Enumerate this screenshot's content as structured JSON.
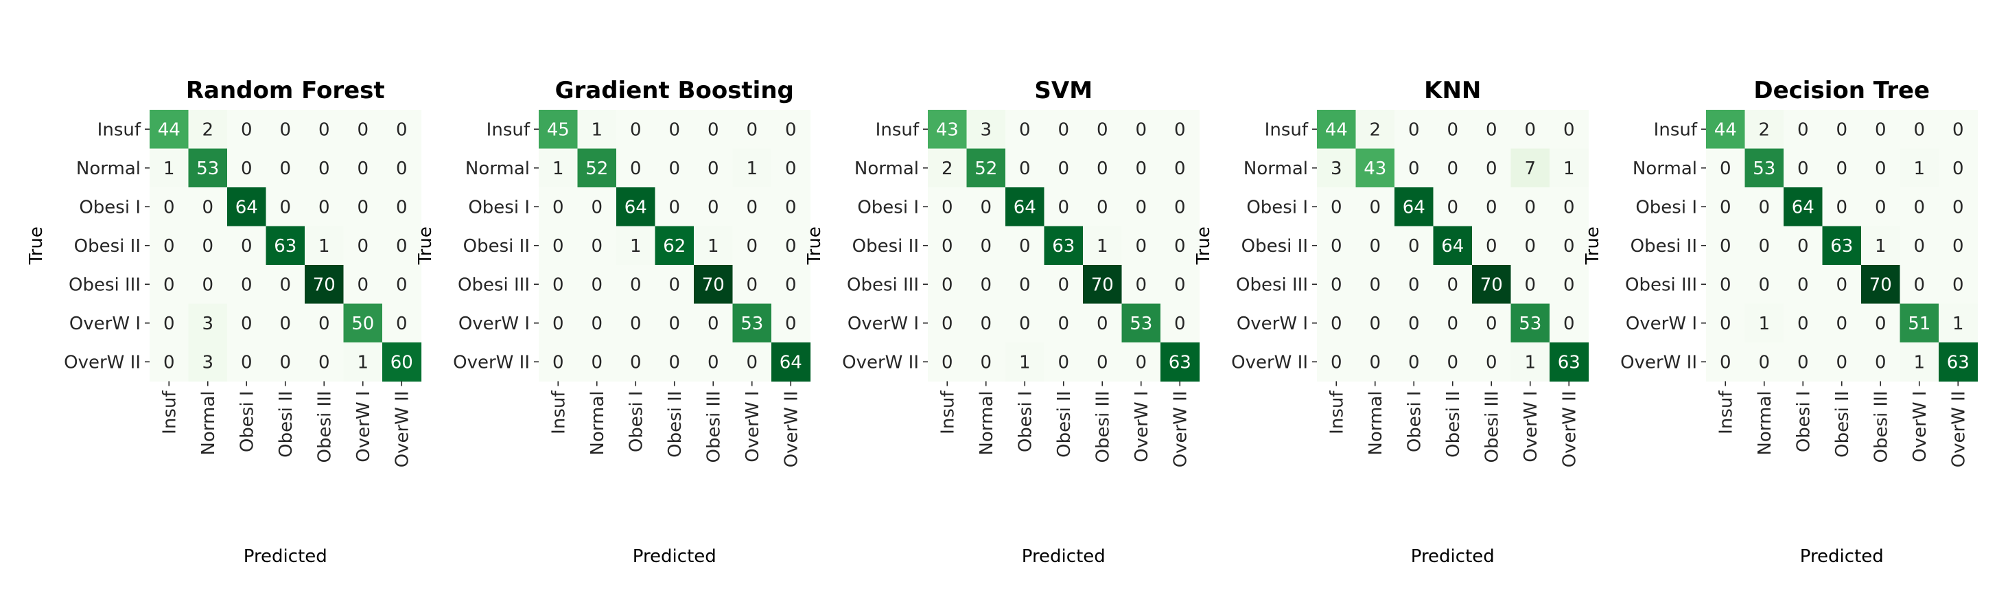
{
  "chart_data": [
    {
      "type": "heatmap",
      "title": "Random Forest",
      "xlabel": "Predicted",
      "ylabel": "True",
      "categories": [
        "Insuf",
        "Normal",
        "Obesi I",
        "Obesi II",
        "Obesi III",
        "OverW I",
        "OverW II"
      ],
      "matrix": [
        [
          44,
          2,
          0,
          0,
          0,
          0,
          0
        ],
        [
          1,
          53,
          0,
          0,
          0,
          0,
          0
        ],
        [
          0,
          0,
          64,
          0,
          0,
          0,
          0
        ],
        [
          0,
          0,
          0,
          63,
          1,
          0,
          0
        ],
        [
          0,
          0,
          0,
          0,
          70,
          0,
          0
        ],
        [
          0,
          3,
          0,
          0,
          0,
          50,
          0
        ],
        [
          0,
          3,
          0,
          0,
          0,
          1,
          60
        ]
      ]
    },
    {
      "type": "heatmap",
      "title": "Gradient Boosting",
      "xlabel": "Predicted",
      "ylabel": "True",
      "categories": [
        "Insuf",
        "Normal",
        "Obesi I",
        "Obesi II",
        "Obesi III",
        "OverW I",
        "OverW II"
      ],
      "matrix": [
        [
          45,
          1,
          0,
          0,
          0,
          0,
          0
        ],
        [
          1,
          52,
          0,
          0,
          0,
          1,
          0
        ],
        [
          0,
          0,
          64,
          0,
          0,
          0,
          0
        ],
        [
          0,
          0,
          1,
          62,
          1,
          0,
          0
        ],
        [
          0,
          0,
          0,
          0,
          70,
          0,
          0
        ],
        [
          0,
          0,
          0,
          0,
          0,
          53,
          0
        ],
        [
          0,
          0,
          0,
          0,
          0,
          0,
          64
        ]
      ]
    },
    {
      "type": "heatmap",
      "title": "SVM",
      "xlabel": "Predicted",
      "ylabel": "True",
      "categories": [
        "Insuf",
        "Normal",
        "Obesi I",
        "Obesi II",
        "Obesi III",
        "OverW I",
        "OverW II"
      ],
      "matrix": [
        [
          43,
          3,
          0,
          0,
          0,
          0,
          0
        ],
        [
          2,
          52,
          0,
          0,
          0,
          0,
          0
        ],
        [
          0,
          0,
          64,
          0,
          0,
          0,
          0
        ],
        [
          0,
          0,
          0,
          63,
          1,
          0,
          0
        ],
        [
          0,
          0,
          0,
          0,
          70,
          0,
          0
        ],
        [
          0,
          0,
          0,
          0,
          0,
          53,
          0
        ],
        [
          0,
          0,
          1,
          0,
          0,
          0,
          63
        ]
      ]
    },
    {
      "type": "heatmap",
      "title": "KNN",
      "xlabel": "Predicted",
      "ylabel": "True",
      "categories": [
        "Insuf",
        "Normal",
        "Obesi I",
        "Obesi II",
        "Obesi III",
        "OverW I",
        "OverW II"
      ],
      "matrix": [
        [
          44,
          2,
          0,
          0,
          0,
          0,
          0
        ],
        [
          3,
          43,
          0,
          0,
          0,
          7,
          1
        ],
        [
          0,
          0,
          64,
          0,
          0,
          0,
          0
        ],
        [
          0,
          0,
          0,
          64,
          0,
          0,
          0
        ],
        [
          0,
          0,
          0,
          0,
          70,
          0,
          0
        ],
        [
          0,
          0,
          0,
          0,
          0,
          53,
          0
        ],
        [
          0,
          0,
          0,
          0,
          0,
          1,
          63
        ]
      ]
    },
    {
      "type": "heatmap",
      "title": "Decision Tree",
      "xlabel": "Predicted",
      "ylabel": "True",
      "categories": [
        "Insuf",
        "Normal",
        "Obesi I",
        "Obesi II",
        "Obesi III",
        "OverW I",
        "OverW II"
      ],
      "matrix": [
        [
          44,
          2,
          0,
          0,
          0,
          0,
          0
        ],
        [
          0,
          53,
          0,
          0,
          0,
          1,
          0
        ],
        [
          0,
          0,
          64,
          0,
          0,
          0,
          0
        ],
        [
          0,
          0,
          0,
          63,
          1,
          0,
          0
        ],
        [
          0,
          0,
          0,
          0,
          70,
          0,
          0
        ],
        [
          0,
          1,
          0,
          0,
          0,
          51,
          1
        ],
        [
          0,
          0,
          0,
          0,
          0,
          1,
          63
        ]
      ]
    }
  ],
  "colors": {
    "colormap": "Greens",
    "low": "#f7fcf5",
    "mid": "#74c476",
    "high": "#00441b",
    "text_dark": "#262626",
    "text_light": "#ffffff"
  }
}
